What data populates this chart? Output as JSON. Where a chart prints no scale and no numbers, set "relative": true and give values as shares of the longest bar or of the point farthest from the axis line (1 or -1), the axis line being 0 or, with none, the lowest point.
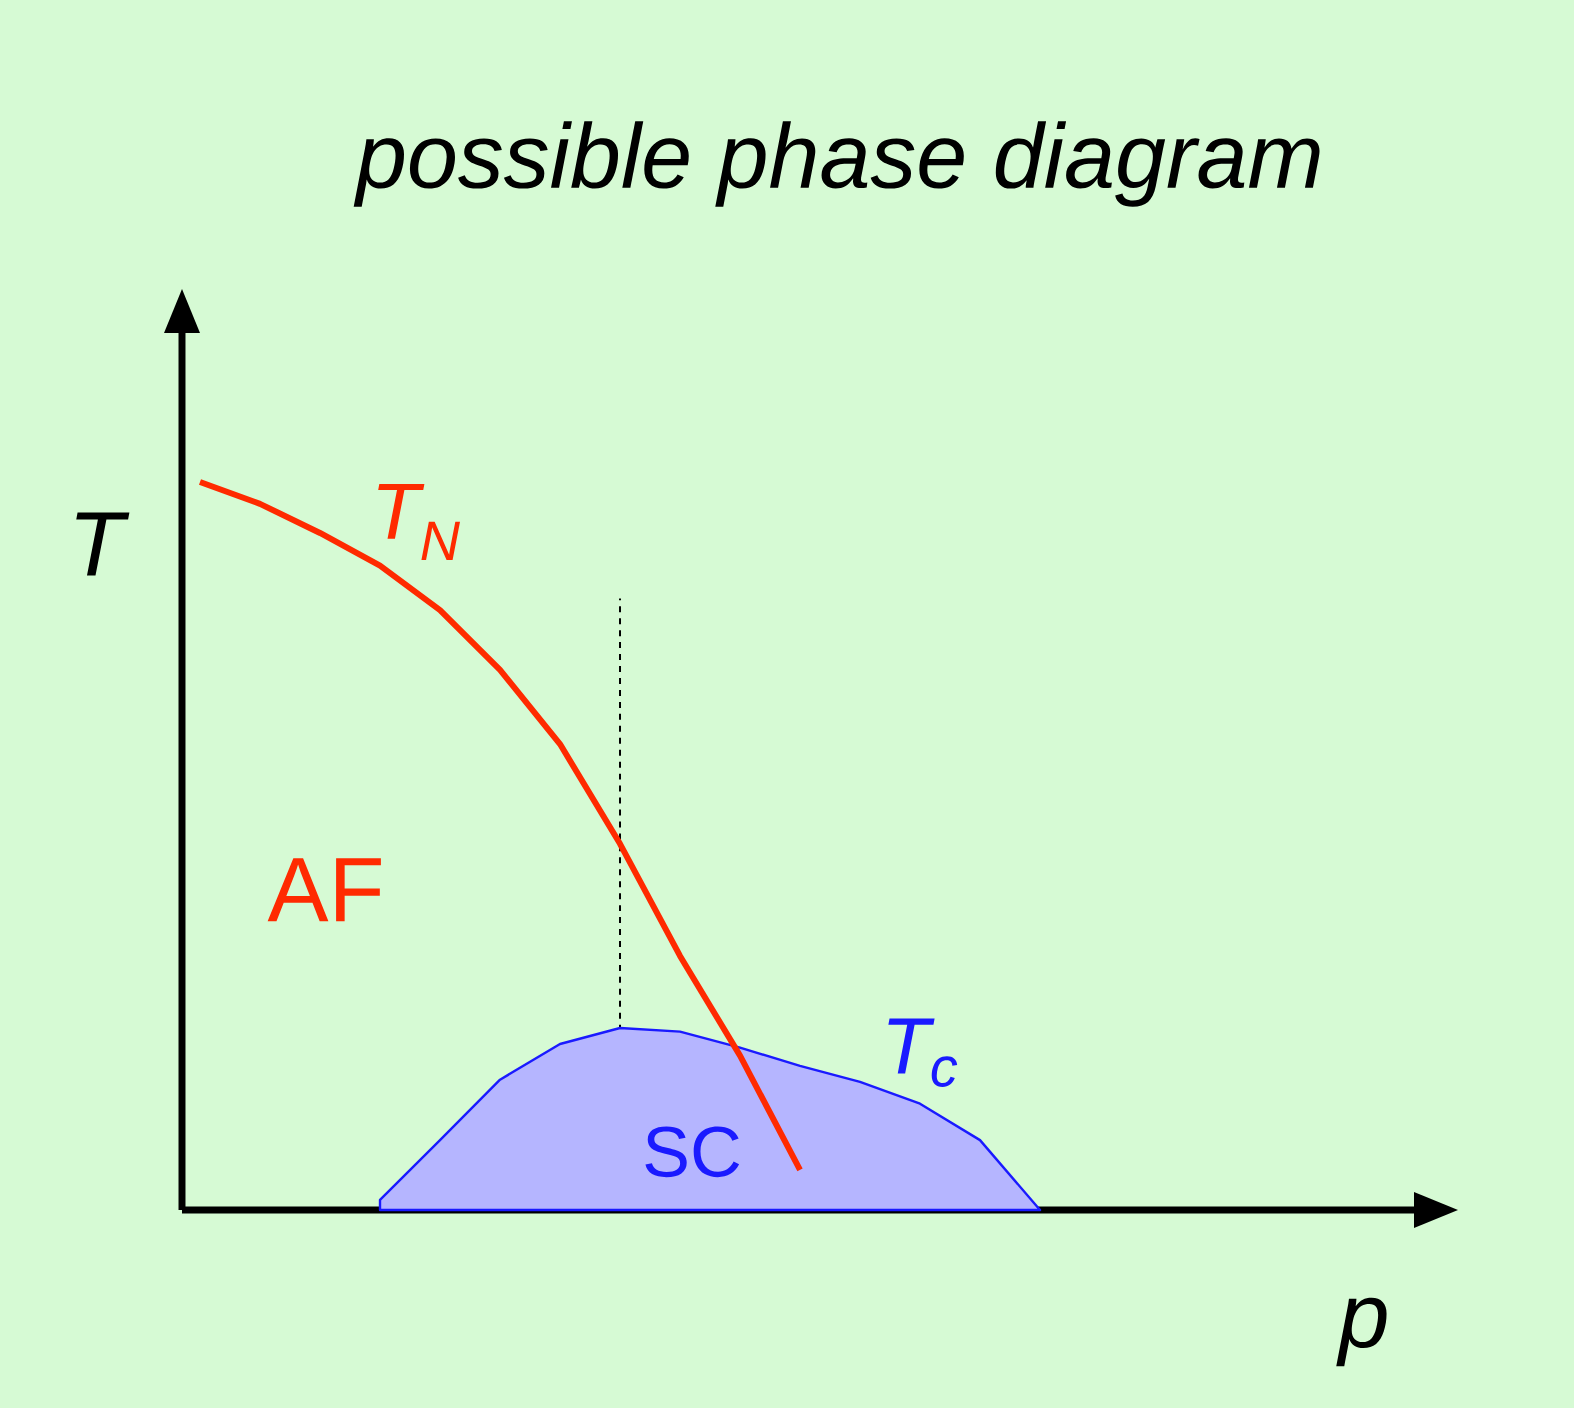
{
  "chart_data": {
    "type": "line",
    "title": "possible phase diagram",
    "xlabel": "p",
    "ylabel": "T",
    "relative": true,
    "categories": [
      null,
      null,
      null,
      null,
      null,
      null,
      null,
      null,
      null,
      null,
      null,
      null,
      null,
      null,
      null,
      null,
      null,
      null,
      null,
      null,
      null
    ],
    "series": [
      {
        "name": "T$_{N}$",
        "color": "#ff2a00",
        "values": [
          1.0,
          0.97,
          0.93,
          0.885,
          0.824,
          0.742,
          0.64,
          0.503,
          0.349,
          0.212,
          0.055,
          null,
          null,
          null,
          null,
          null,
          null,
          null,
          null,
          null,
          null
        ]
      },
      {
        "name": "T$_{c}$",
        "type": "area",
        "color": "#1a1aff",
        "values": [
          null,
          null,
          null,
          0.014,
          0.096,
          0.179,
          0.228,
          0.25,
          0.245,
          0.223,
          0.198,
          0.176,
          0.146,
          0.096,
          0.0,
          null,
          null,
          null,
          null,
          null,
          null
        ]
      }
    ],
    "annotations": [
      "AF",
      "SC"
    ]
  }
}
